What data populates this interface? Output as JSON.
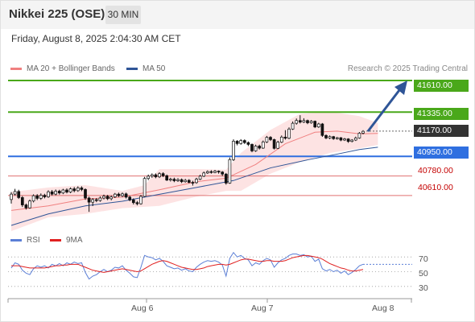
{
  "header": {
    "title": "Nikkei 225 (OSE)",
    "interval": "30 MIN",
    "datetime": "Friday, August 8, 2025 2:04:30 AM CET",
    "credit": "Research © 2025 Trading Central"
  },
  "legend": {
    "ma20": "MA 20 + Bollinger Bands",
    "ma50": "MA 50",
    "rsi": "RSI",
    "nine_ma": "9MA"
  },
  "colors": {
    "green_level": "#4aa81a",
    "blue_level": "#2f6fe0",
    "red_level": "#e07070",
    "current_price": "#333333",
    "ma20": "#f08080",
    "ma50": "#2f5597",
    "rsi": "#5b7fd6",
    "rsi_ma": "#e02020",
    "arrow": "#2f5597",
    "bollinger_fill": "#fde0e0"
  },
  "levels": [
    {
      "value": "41610.00",
      "kind": "green"
    },
    {
      "value": "41335.00",
      "kind": "green"
    },
    {
      "value": "41170.00",
      "kind": "current"
    },
    {
      "value": "40950.00",
      "kind": "blue"
    },
    {
      "value": "40780.00",
      "kind": "red"
    },
    {
      "value": "40610.00",
      "kind": "red"
    }
  ],
  "rsi_axis": [
    "70",
    "50",
    "30"
  ],
  "x_axis": [
    "Aug 6",
    "Aug 7",
    "Aug 8"
  ],
  "chart_data": {
    "type": "candlestick",
    "y_range": [
      40280,
      41750
    ],
    "candles": [
      [
        40575,
        40622,
        40540,
        40640
      ],
      [
        40622,
        40645,
        40610,
        40668
      ],
      [
        40645,
        40592,
        40580,
        40660
      ],
      [
        40592,
        40528,
        40510,
        40605
      ],
      [
        40528,
        40502,
        40488,
        40540
      ],
      [
        40502,
        40562,
        40495,
        40575
      ],
      [
        40562,
        40608,
        40550,
        40620
      ],
      [
        40608,
        40585,
        40570,
        40622
      ],
      [
        40585,
        40612,
        40572,
        40628
      ],
      [
        40612,
        40598,
        40585,
        40625
      ],
      [
        40598,
        40642,
        40590,
        40655
      ],
      [
        40642,
        40622,
        40610,
        40658
      ],
      [
        40622,
        40648,
        40612,
        40662
      ],
      [
        40648,
        40632,
        40618,
        40660
      ],
      [
        40632,
        40658,
        40622,
        40668
      ],
      [
        40658,
        40640,
        40628,
        40672
      ],
      [
        40640,
        40668,
        40630,
        40680
      ],
      [
        40668,
        40652,
        40638,
        40684
      ],
      [
        40652,
        40676,
        40642,
        40690
      ],
      [
        40676,
        40662,
        40648,
        40690
      ],
      [
        40662,
        40588,
        40572,
        40672
      ],
      [
        40588,
        40552,
        40468,
        40600
      ],
      [
        40552,
        40574,
        40518,
        40588
      ],
      [
        40574,
        40566,
        40552,
        40588
      ],
      [
        40566,
        40588,
        40556,
        40602
      ],
      [
        40588,
        40604,
        40576,
        40618
      ],
      [
        40604,
        40582,
        40570,
        40615
      ],
      [
        40582,
        40598,
        40568,
        40610
      ],
      [
        40598,
        40622,
        40588,
        40632
      ],
      [
        40622,
        40608,
        40596,
        40635
      ],
      [
        40608,
        40624,
        40598,
        40636
      ],
      [
        40624,
        40596,
        40584,
        40635
      ],
      [
        40596,
        40572,
        40560,
        40608
      ],
      [
        40572,
        40548,
        40532,
        40585
      ],
      [
        40548,
        40538,
        40524,
        40562
      ],
      [
        40538,
        40602,
        40530,
        40615
      ],
      [
        40602,
        40758,
        40596,
        40772
      ],
      [
        40758,
        40778,
        40744,
        40792
      ],
      [
        40778,
        40790,
        40764,
        40802
      ],
      [
        40790,
        40772,
        40760,
        40802
      ],
      [
        40772,
        40800,
        40762,
        40812
      ],
      [
        40800,
        40782,
        40770,
        40812
      ],
      [
        40782,
        40744,
        40736,
        40792
      ],
      [
        40744,
        40752,
        40732,
        40764
      ],
      [
        40752,
        40738,
        40726,
        40765
      ],
      [
        40738,
        40748,
        40728,
        40760
      ],
      [
        40748,
        40730,
        40718,
        40758
      ],
      [
        40730,
        40742,
        40722,
        40754
      ],
      [
        40742,
        40724,
        40716,
        40752
      ],
      [
        40724,
        40722,
        40696,
        40738
      ],
      [
        40722,
        40752,
        40712,
        40764
      ],
      [
        40752,
        40778,
        40744,
        40790
      ],
      [
        40778,
        40806,
        40770,
        40818
      ],
      [
        40806,
        40818,
        40798,
        40828
      ],
      [
        40818,
        40810,
        40800,
        40830
      ],
      [
        40810,
        40822,
        40804,
        40832
      ],
      [
        40822,
        40814,
        40800,
        40828
      ],
      [
        40814,
        40796,
        40780,
        40822
      ],
      [
        40796,
        40718,
        40704,
        40806
      ],
      [
        40718,
        40922,
        40712,
        40940
      ],
      [
        40922,
        41082,
        40910,
        41098
      ],
      [
        41082,
        41062,
        41046,
        41092
      ],
      [
        41062,
        41088,
        41052,
        41100
      ],
      [
        41088,
        41070,
        41058,
        41098
      ],
      [
        41070,
        41054,
        41040,
        41080
      ],
      [
        41054,
        40998,
        40986,
        41062
      ],
      [
        40998,
        41040,
        40990,
        41052
      ],
      [
        41040,
        41022,
        41010,
        41052
      ],
      [
        41022,
        41076,
        41016,
        41088
      ],
      [
        41076,
        41116,
        41066,
        41128
      ],
      [
        41116,
        41096,
        41084,
        41126
      ],
      [
        41096,
        41020,
        41010,
        41104
      ],
      [
        41020,
        41074,
        41014,
        41086
      ],
      [
        41074,
        41118,
        41066,
        41132
      ],
      [
        41118,
        41108,
        41096,
        41178
      ],
      [
        41108,
        41188,
        41100,
        41202
      ],
      [
        41188,
        41238,
        41180,
        41254
      ],
      [
        41238,
        41262,
        41226,
        41280
      ],
      [
        41262,
        41248,
        41236,
        41308
      ],
      [
        41248,
        41262,
        41240,
        41282
      ],
      [
        41262,
        41242,
        41230,
        41270
      ],
      [
        41242,
        41256,
        41234,
        41266
      ],
      [
        41256,
        41206,
        41196,
        41262
      ],
      [
        41206,
        41232,
        41198,
        41242
      ],
      [
        41232,
        41132,
        41120,
        41240
      ],
      [
        41132,
        41110,
        41100,
        41142
      ],
      [
        41110,
        41122,
        41100,
        41132
      ],
      [
        41122,
        41104,
        41094,
        41128
      ],
      [
        41104,
        41112,
        41096,
        41120
      ],
      [
        41112,
        41092,
        41082,
        41118
      ],
      [
        41092,
        41102,
        41084,
        41110
      ],
      [
        41102,
        41080,
        41068,
        41108
      ],
      [
        41080,
        41092,
        41072,
        41100
      ],
      [
        41092,
        41110,
        41084,
        41122
      ],
      [
        41110,
        41152,
        41104,
        41162
      ],
      [
        41152,
        41168,
        41142,
        41178
      ]
    ],
    "ma20": [
      [
        0,
        40480
      ],
      [
        10,
        40520
      ],
      [
        20,
        40580
      ],
      [
        30,
        40596
      ],
      [
        40,
        40660
      ],
      [
        50,
        40730
      ],
      [
        58,
        40760
      ],
      [
        66,
        40880
      ],
      [
        74,
        41060
      ],
      [
        82,
        41160
      ],
      [
        88,
        41170
      ],
      [
        94,
        41146
      ],
      [
        99,
        41150
      ]
    ],
    "ma50": [
      [
        0,
        40350
      ],
      [
        10,
        40450
      ],
      [
        20,
        40520
      ],
      [
        30,
        40560
      ],
      [
        40,
        40620
      ],
      [
        50,
        40680
      ],
      [
        60,
        40740
      ],
      [
        70,
        40850
      ],
      [
        80,
        40920
      ],
      [
        88,
        40970
      ],
      [
        94,
        41010
      ],
      [
        99,
        41030
      ]
    ],
    "bb_upper": [
      [
        0,
        40640
      ],
      [
        10,
        40680
      ],
      [
        20,
        40700
      ],
      [
        30,
        40650
      ],
      [
        36,
        40700
      ],
      [
        40,
        40840
      ],
      [
        50,
        40840
      ],
      [
        58,
        40835
      ],
      [
        62,
        40980
      ],
      [
        70,
        41180
      ],
      [
        78,
        41320
      ],
      [
        86,
        41340
      ],
      [
        94,
        41300
      ],
      [
        99,
        41240
      ]
    ],
    "bb_lower": [
      [
        0,
        40300
      ],
      [
        10,
        40420
      ],
      [
        20,
        40450
      ],
      [
        30,
        40500
      ],
      [
        40,
        40520
      ],
      [
        50,
        40600
      ],
      [
        58,
        40650
      ],
      [
        62,
        40650
      ],
      [
        70,
        40800
      ],
      [
        78,
        40900
      ],
      [
        86,
        40980
      ],
      [
        94,
        41020
      ],
      [
        99,
        41050
      ]
    ],
    "rsi": [
      55,
      62,
      60,
      52,
      48,
      46,
      54,
      58,
      56,
      58,
      55,
      60,
      58,
      61,
      58,
      62,
      60,
      63,
      61,
      62,
      49,
      40,
      44,
      46,
      50,
      53,
      50,
      52,
      56,
      55,
      58,
      52,
      48,
      43,
      42,
      56,
      72,
      70,
      69,
      66,
      68,
      64,
      58,
      56,
      54,
      55,
      52,
      54,
      51,
      50,
      56,
      60,
      63,
      65,
      64,
      65,
      63,
      59,
      44,
      68,
      76,
      70,
      72,
      68,
      66,
      58,
      62,
      60,
      65,
      68,
      66,
      56,
      62,
      66,
      68,
      72,
      74,
      74,
      72,
      73,
      70,
      71,
      64,
      67,
      54,
      51,
      53,
      50,
      52,
      48,
      51,
      46,
      49,
      53,
      58,
      60
    ],
    "rsi_ma": [
      58,
      58,
      58,
      57,
      56,
      55,
      55,
      55,
      55,
      55,
      56,
      57,
      58,
      58,
      59,
      59,
      60,
      60,
      60,
      58,
      56,
      54,
      52,
      51,
      50,
      49,
      50,
      51,
      52,
      53,
      54,
      53,
      52,
      51,
      50,
      51,
      54,
      57,
      60,
      62,
      64,
      65,
      64,
      62,
      60,
      58,
      56,
      55,
      54,
      53,
      53,
      54,
      55,
      57,
      58,
      59,
      60,
      60,
      59,
      60,
      62,
      64,
      66,
      67,
      67,
      66,
      65,
      64,
      64,
      65,
      65,
      64,
      64,
      64,
      65,
      67,
      69,
      70,
      71,
      72,
      72,
      71,
      70,
      69,
      67,
      64,
      61,
      59,
      57,
      55,
      54,
      52,
      51,
      51,
      52,
      53
    ],
    "projection_target": 41610
  }
}
